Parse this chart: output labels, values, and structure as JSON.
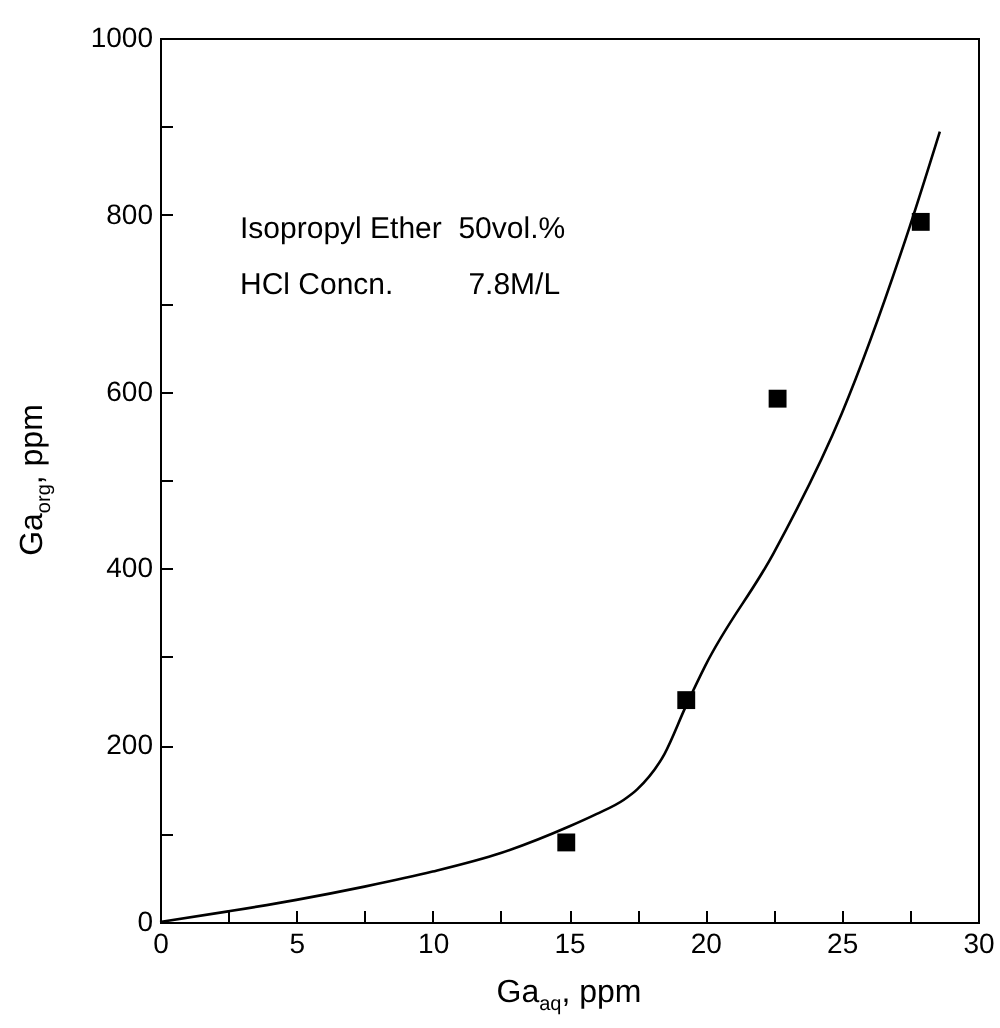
{
  "chart_data": {
    "type": "scatter",
    "xlabel": "Ga$_{aq}$, ppm",
    "ylabel": "Ga$_{org}$, ppm",
    "annotations": [
      "Isopropyl Ether  50vol.%",
      "HCl Concn.         7.8M/L"
    ],
    "xlim": [
      0,
      30
    ],
    "ylim": [
      0,
      1000
    ],
    "xticks": [
      0,
      {
        "value": 2.5,
        "label": null
      },
      5,
      {
        "value": 7.5,
        "label": null
      },
      10,
      {
        "value": 12.5,
        "label": null
      },
      15,
      {
        "value": 17.5,
        "label": null
      },
      20,
      {
        "value": 22.5,
        "label": null
      },
      25,
      {
        "value": 27.5,
        "label": null
      },
      30
    ],
    "yticks": [
      0,
      {
        "value": 100,
        "label": null
      },
      200,
      {
        "value": 300,
        "label": null
      },
      400,
      {
        "value": 500,
        "label": null
      },
      600,
      {
        "value": 700,
        "label": null
      },
      800,
      {
        "value": 900,
        "label": null
      },
      1000
    ],
    "grid": false,
    "series": [
      {
        "color": "#000000",
        "marker": "square",
        "x": [
          14.9,
          19.3,
          22.65,
          27.9
        ],
        "values": [
          90,
          251,
          592,
          792
        ]
      },
      {
        "type": "line",
        "color": "#000000",
        "marker": "none",
        "x": [
          0,
          2.5,
          5,
          7.5,
          10,
          12.5,
          15,
          16,
          17,
          17.5,
          18.5,
          19.3,
          20,
          22.5,
          25,
          27.5,
          28.6
        ],
        "values": [
          0,
          12,
          25,
          40,
          57,
          78,
          108,
          122,
          138,
          150,
          190,
          245,
          290,
          417,
          575,
          787,
          894
        ]
      }
    ]
  }
}
